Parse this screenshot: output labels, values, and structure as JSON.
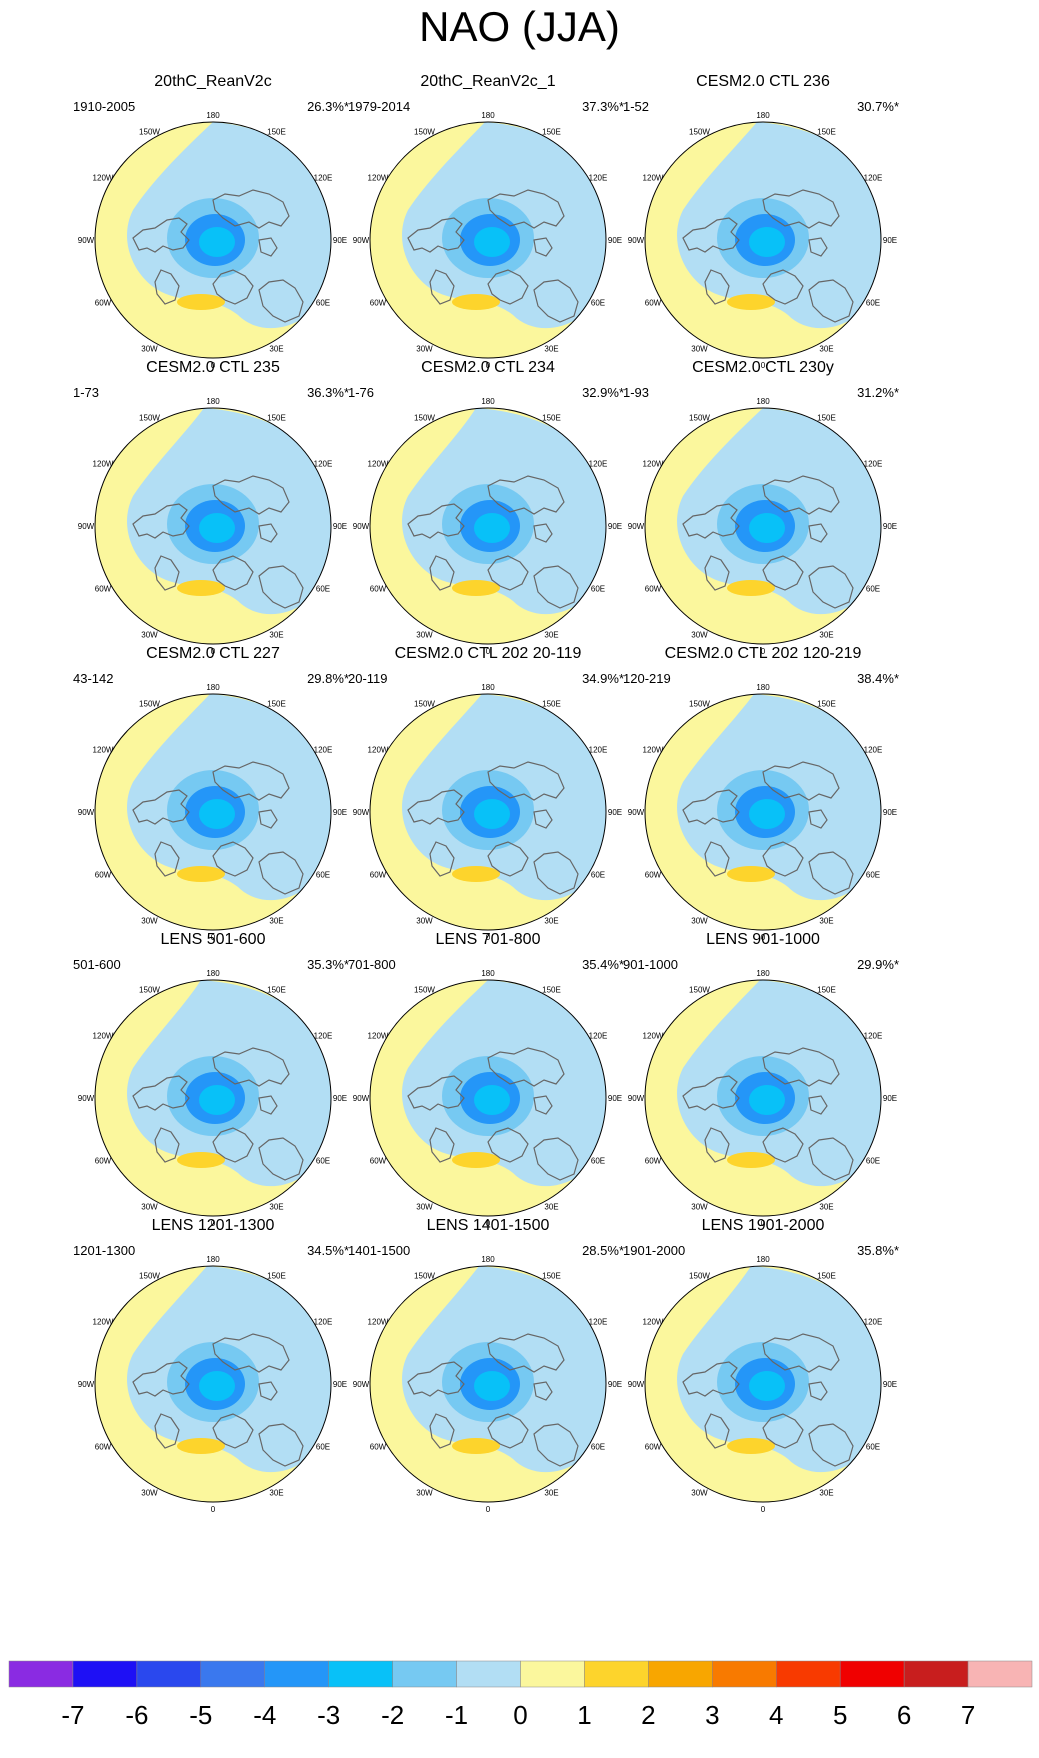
{
  "chart_data": {
    "type": "heatmap",
    "title": "NAO (JJA)",
    "description_note": "Polar stereographic maps of the leading EOF of JJA sea-level pressure over the Northern Hemisphere",
    "lon_labels": [
      "180",
      "150E",
      "120E",
      "90E",
      "60E",
      "30E",
      "0",
      "30W",
      "60W",
      "90W",
      "120W",
      "150W"
    ],
    "panels": [
      {
        "title": "20thC_ReanV2c",
        "period": "1910-2005",
        "variance": "26.3%*"
      },
      {
        "title": "20thC_ReanV2c_1",
        "period": "1979-2014",
        "variance": "37.3%*"
      },
      {
        "title": "CESM2.0 CTL 236",
        "period": "1-52",
        "variance": "30.7%*"
      },
      {
        "title": "CESM2.0 CTL 235",
        "period": "1-73",
        "variance": "36.3%*"
      },
      {
        "title": "CESM2.0 CTL 234",
        "period": "1-76",
        "variance": "32.9%*"
      },
      {
        "title": "CESM2.0 CTL 230y",
        "period": "1-93",
        "variance": "31.2%*"
      },
      {
        "title": "CESM2.0 CTL 227",
        "period": "43-142",
        "variance": "29.8%*"
      },
      {
        "title": "CESM2.0 CTL 202 20-119",
        "period": "20-119",
        "variance": "34.9%*"
      },
      {
        "title": "CESM2.0 CTL 202 120-219",
        "period": "120-219",
        "variance": "38.4%*"
      },
      {
        "title": "LENS 501-600",
        "period": "501-600",
        "variance": "35.3%*"
      },
      {
        "title": "LENS 701-800",
        "period": "701-800",
        "variance": "35.4%*"
      },
      {
        "title": "LENS 901-1000",
        "period": "901-1000",
        "variance": "29.9%*"
      },
      {
        "title": "LENS 1201-1300",
        "period": "1201-1300",
        "variance": "34.5%*"
      },
      {
        "title": "LENS 1401-1500",
        "period": "1401-1500",
        "variance": "28.5%*"
      },
      {
        "title": "LENS 1901-2000",
        "period": "1901-2000",
        "variance": "35.8%*"
      }
    ],
    "colorbar": {
      "labels": [
        "-7",
        "-6",
        "-5",
        "-4",
        "-3",
        "-2",
        "-1",
        "0",
        "1",
        "2",
        "3",
        "4",
        "5",
        "6",
        "7"
      ],
      "colors": [
        "#8a2be2",
        "#1e10f5",
        "#2a48ee",
        "#3a78ee",
        "#2496f8",
        "#08c1f8",
        "#76c9f2",
        "#b2def4",
        "#fbf79d",
        "#fdd42c",
        "#f8a600",
        "#f87a00",
        "#f83a00",
        "#f00000",
        "#c81e1e",
        "#f8b4b4"
      ]
    }
  }
}
